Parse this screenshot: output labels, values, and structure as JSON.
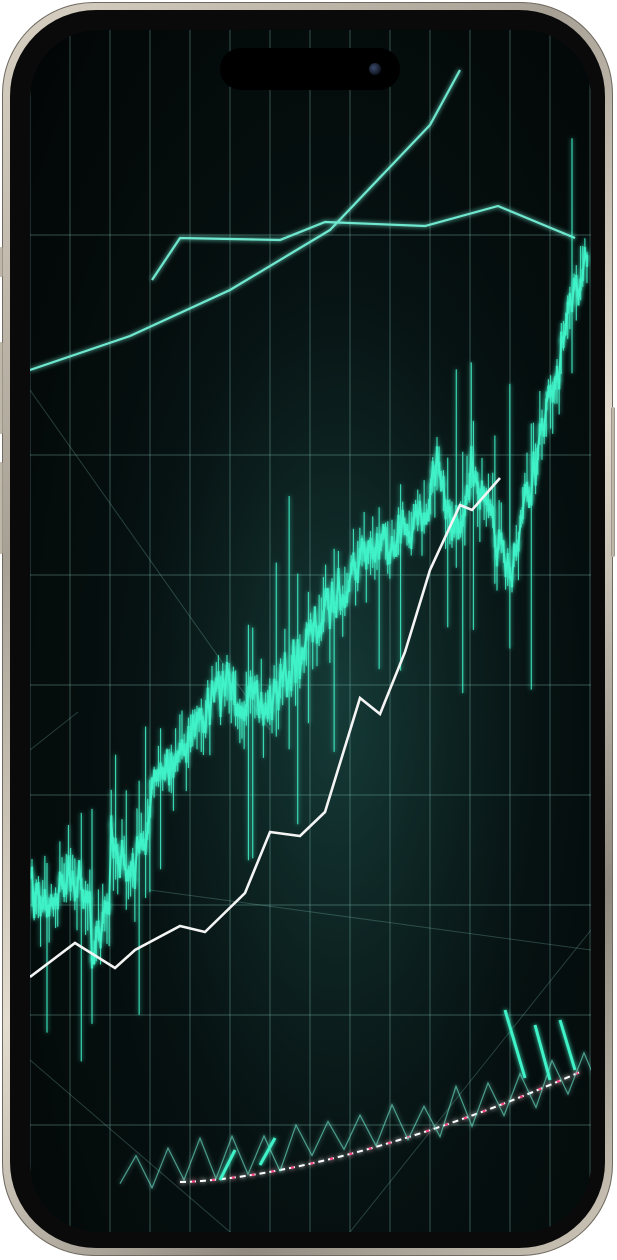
{
  "scene": {
    "subject": "smartphone",
    "screen_content": "financial chart",
    "frame_color": "#c9c2b3",
    "screen_background": "#041010",
    "accent_color": "#3ff2c8",
    "line_color": "#f2f2f2",
    "guide_color": "#7fe6d2",
    "icons": [
      "dynamic-island",
      "front-camera"
    ]
  }
}
